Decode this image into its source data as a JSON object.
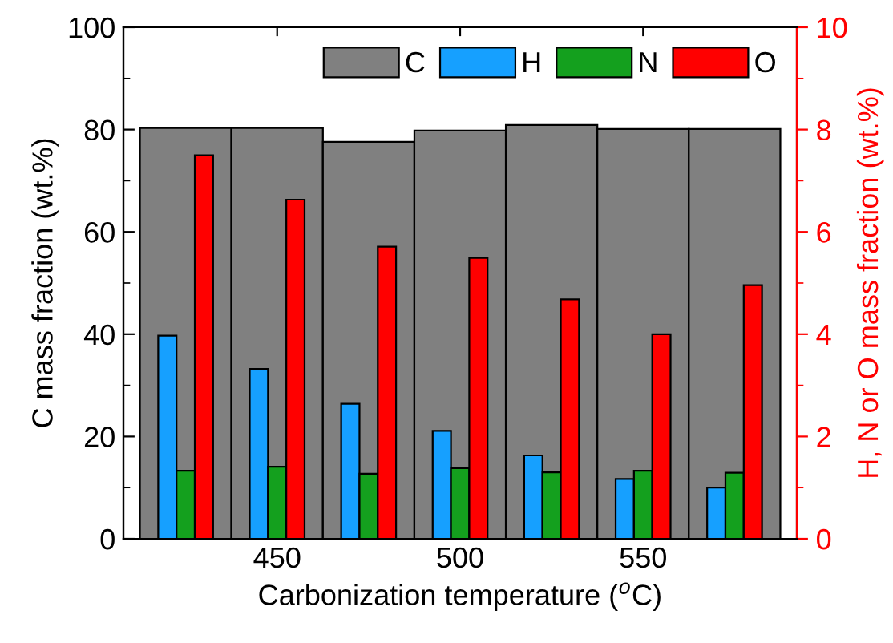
{
  "chart_data": {
    "type": "bar",
    "xlabel": "Carbonization temperature ($^{o}$C)",
    "ylabel": "C mass fraction (wt.%)",
    "y2label": "H, N or O mass fraction (wt.%)",
    "x": [
      425,
      450,
      475,
      500,
      525,
      550,
      575
    ],
    "xlim": [
      408,
      592
    ],
    "xticks": [
      450,
      500,
      550
    ],
    "ylim": [
      0,
      100
    ],
    "yticks": [
      0,
      20,
      40,
      60,
      80,
      100
    ],
    "y2lim": [
      0,
      10
    ],
    "y2ticks": [
      0,
      2,
      4,
      6,
      8,
      10
    ],
    "grid": false,
    "legend": "top right",
    "series": [
      {
        "name": "C",
        "color": "#808080",
        "values": [
          80.3,
          80.3,
          77.6,
          79.8,
          80.9,
          80.1,
          80.1
        ]
      },
      {
        "name": "H",
        "color": "#16a0ff",
        "axis": "y2",
        "values": [
          3.97,
          3.32,
          2.64,
          2.11,
          1.63,
          1.17,
          1.0
        ]
      },
      {
        "name": "N",
        "color": "#14a01e",
        "axis": "y2",
        "values": [
          1.33,
          1.41,
          1.27,
          1.38,
          1.3,
          1.33,
          1.29
        ]
      },
      {
        "name": "O",
        "color": "#ff0000",
        "axis": "y2",
        "values": [
          7.5,
          6.63,
          5.71,
          5.49,
          4.68,
          4.0,
          4.96
        ]
      }
    ]
  }
}
